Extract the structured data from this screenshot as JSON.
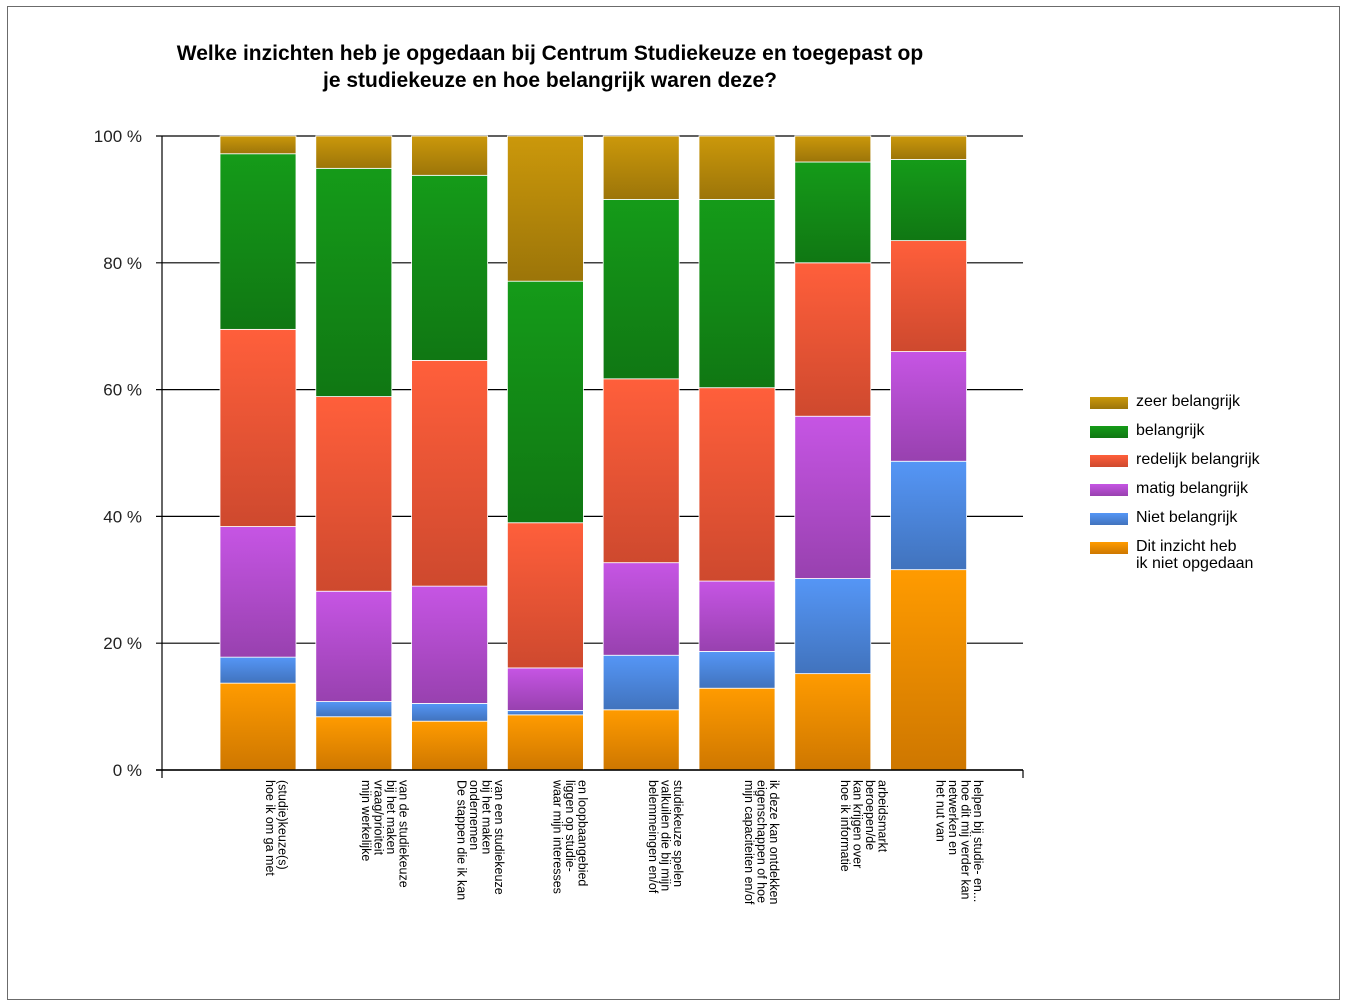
{
  "chart_data": {
    "type": "bar",
    "stacked": true,
    "title": [
      "Welke inzichten heb je opgedaan bij Centrum Studiekeuze en toegepast op",
      "je studiekeuze en hoe belangrijk waren deze?"
    ],
    "xlabel": "",
    "ylabel": "",
    "ylim": [
      0,
      100
    ],
    "yticks": [
      "0 %",
      "20 %",
      "40 %",
      "60 %",
      "80 %",
      "100 %"
    ],
    "grid": true,
    "legend_position": "right",
    "categories": [
      [
        "hoe ik om ga met",
        "(studie)keuze(s)"
      ],
      [
        "mijn werkelijke",
        "vraag/prioiteit",
        "bij het maken",
        "van de studiekeuze"
      ],
      [
        "De stappen die ik kan",
        "ondernemen",
        "bij het maken",
        "van een studiekeuze"
      ],
      [
        "waar mijn interesses",
        "liggen op studie-",
        "en loopbaangebied"
      ],
      [
        "belemmeingen en/of",
        "valkuilen die bij mijn",
        "studiekeuze spelen"
      ],
      [
        "mijn capaciteiten en/of",
        "eigenschappen of hoe",
        "ik deze kan ontdekken"
      ],
      [
        "hoe ik informatie",
        "kan krijgen over",
        "beroepen/de",
        "arbeidsmarkt"
      ],
      [
        "het nut van",
        "netwerken en",
        "hoe dit mij verder kan",
        "helpen bij studie- en..."
      ]
    ],
    "series": [
      {
        "name": "Dit inzicht heb\nik niet opgedaan",
        "color": "#f08a00",
        "values": [
          13.7,
          8.4,
          7.7,
          8.7,
          9.5,
          12.9,
          15.2,
          31.6
        ]
      },
      {
        "name": "Niet belangrijk",
        "color": "#4c86dc",
        "values": [
          4.1,
          2.4,
          2.8,
          0.7,
          8.6,
          5.8,
          15.0,
          17.1
        ]
      },
      {
        "name": "matig belangrijk",
        "color": "#b14ccc",
        "values": [
          20.6,
          17.4,
          18.5,
          6.7,
          14.6,
          11.1,
          25.6,
          17.3
        ]
      },
      {
        "name": "redelijk belangrijk",
        "color": "#ef5535",
        "values": [
          31.1,
          30.7,
          35.6,
          22.9,
          29.0,
          30.5,
          24.2,
          17.5
        ]
      },
      {
        "name": "belangrijk",
        "color": "#138a16",
        "values": [
          27.7,
          36.0,
          29.2,
          38.1,
          28.3,
          29.7,
          15.9,
          12.8
        ]
      },
      {
        "name": "zeer belangrijk",
        "color": "#b5880a",
        "values": [
          2.8,
          5.1,
          6.2,
          22.9,
          10.0,
          10.0,
          4.1,
          3.7
        ]
      }
    ]
  }
}
